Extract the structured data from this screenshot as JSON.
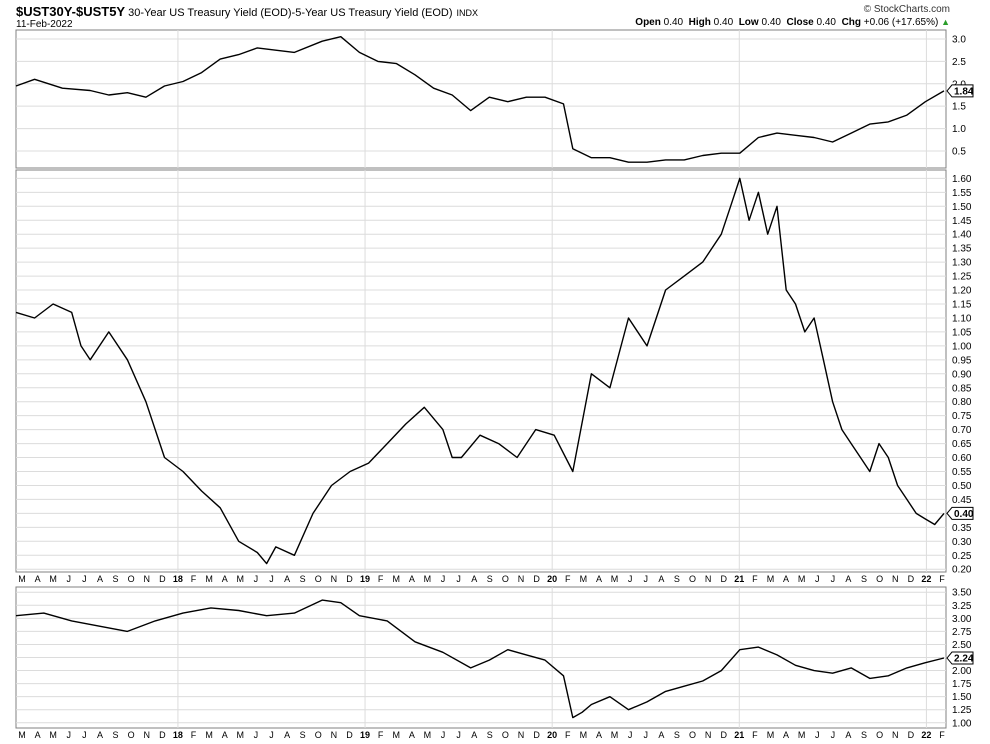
{
  "header": {
    "symbol": "$UST30Y-$UST5Y",
    "description": "30-Year US Treasury Yield (EOD)-5-Year US Treasury Yield (EOD)",
    "exchange": "INDX",
    "date": "11-Feb-2022",
    "brand": "© StockCharts.com",
    "open_label": "Open",
    "open": "0.40",
    "high_label": "High",
    "high": "0.40",
    "low_label": "Low",
    "low": "0.40",
    "close_label": "Close",
    "close": "0.40",
    "chg_label": "Chg",
    "chg": "+0.06 (+17.65%)",
    "chg_arrow": "▲"
  },
  "colors": {
    "line": "#000000",
    "grid": "#dcdcdc",
    "frame": "#808080",
    "up": "#2a9d2a"
  },
  "chart_data": [
    {
      "id": "upper",
      "type": "line",
      "title": "",
      "y_ticks": [
        "0.5",
        "1.0",
        "1.5",
        "2.0",
        "2.5",
        "3.0"
      ],
      "ylim": [
        0.12,
        3.2
      ],
      "last_label": "1.84",
      "series": [
        {
          "x": [
            0,
            0.02,
            0.05,
            0.08,
            0.1,
            0.12,
            0.14,
            0.16,
            0.18,
            0.2,
            0.22,
            0.24,
            0.26,
            0.28,
            0.3,
            0.33,
            0.35,
            0.37,
            0.39,
            0.41,
            0.43,
            0.45,
            0.47,
            0.49,
            0.51,
            0.53,
            0.55,
            0.57,
            0.59,
            0.6,
            0.62,
            0.64,
            0.66,
            0.68,
            0.7,
            0.72,
            0.74,
            0.76,
            0.78,
            0.8,
            0.82,
            0.84,
            0.86,
            0.88,
            0.9,
            0.92,
            0.94,
            0.96,
            0.98,
            1.0
          ],
          "y": [
            1.95,
            2.1,
            1.9,
            1.85,
            1.75,
            1.8,
            1.7,
            1.95,
            2.05,
            2.25,
            2.55,
            2.65,
            2.8,
            2.75,
            2.7,
            2.95,
            3.05,
            2.7,
            2.5,
            2.45,
            2.2,
            1.9,
            1.75,
            1.4,
            1.7,
            1.6,
            1.7,
            1.7,
            1.55,
            0.55,
            0.35,
            0.35,
            0.25,
            0.25,
            0.3,
            0.3,
            0.4,
            0.45,
            0.45,
            0.8,
            0.9,
            0.85,
            0.8,
            0.7,
            0.9,
            1.1,
            1.15,
            1.3,
            1.6,
            1.84
          ]
        }
      ]
    },
    {
      "id": "main",
      "type": "line",
      "title": "",
      "y_ticks": [
        "0.20",
        "0.25",
        "0.30",
        "0.35",
        "0.40",
        "0.45",
        "0.50",
        "0.55",
        "0.60",
        "0.65",
        "0.70",
        "0.75",
        "0.80",
        "0.85",
        "0.90",
        "0.95",
        "1.00",
        "1.05",
        "1.10",
        "1.15",
        "1.20",
        "1.25",
        "1.30",
        "1.35",
        "1.40",
        "1.45",
        "1.50",
        "1.55",
        "1.60"
      ],
      "ylim": [
        0.19,
        1.63
      ],
      "last_label": "0.40",
      "series": [
        {
          "x": [
            0,
            0.02,
            0.04,
            0.06,
            0.07,
            0.08,
            0.1,
            0.12,
            0.14,
            0.16,
            0.18,
            0.2,
            0.22,
            0.24,
            0.26,
            0.27,
            0.28,
            0.3,
            0.32,
            0.34,
            0.36,
            0.38,
            0.4,
            0.42,
            0.44,
            0.46,
            0.47,
            0.48,
            0.5,
            0.52,
            0.54,
            0.56,
            0.58,
            0.6,
            0.62,
            0.64,
            0.66,
            0.68,
            0.7,
            0.72,
            0.74,
            0.76,
            0.77,
            0.78,
            0.79,
            0.8,
            0.81,
            0.82,
            0.83,
            0.84,
            0.85,
            0.86,
            0.87,
            0.88,
            0.89,
            0.9,
            0.91,
            0.92,
            0.93,
            0.94,
            0.95,
            0.96,
            0.97,
            0.98,
            0.99,
            1.0
          ],
          "y": [
            1.12,
            1.1,
            1.15,
            1.12,
            1.0,
            0.95,
            1.05,
            0.95,
            0.8,
            0.6,
            0.55,
            0.48,
            0.42,
            0.3,
            0.26,
            0.22,
            0.28,
            0.25,
            0.4,
            0.5,
            0.55,
            0.58,
            0.65,
            0.72,
            0.78,
            0.7,
            0.6,
            0.6,
            0.68,
            0.65,
            0.6,
            0.7,
            0.68,
            0.55,
            0.9,
            0.85,
            1.1,
            1.0,
            1.2,
            1.25,
            1.3,
            1.4,
            1.5,
            1.6,
            1.45,
            1.55,
            1.4,
            1.5,
            1.2,
            1.15,
            1.05,
            1.1,
            0.95,
            0.8,
            0.7,
            0.65,
            0.6,
            0.55,
            0.65,
            0.6,
            0.5,
            0.45,
            0.4,
            0.38,
            0.36,
            0.4
          ]
        }
      ]
    },
    {
      "id": "lower",
      "type": "line",
      "title": "",
      "y_ticks": [
        "1.00",
        "1.25",
        "1.50",
        "1.75",
        "2.00",
        "2.25",
        "2.50",
        "2.75",
        "3.00",
        "3.25",
        "3.50"
      ],
      "ylim": [
        0.9,
        3.6
      ],
      "last_label": "2.24",
      "series": [
        {
          "x": [
            0,
            0.03,
            0.06,
            0.09,
            0.12,
            0.15,
            0.18,
            0.21,
            0.24,
            0.27,
            0.3,
            0.33,
            0.35,
            0.37,
            0.4,
            0.43,
            0.46,
            0.49,
            0.51,
            0.53,
            0.55,
            0.57,
            0.59,
            0.6,
            0.61,
            0.62,
            0.64,
            0.66,
            0.68,
            0.7,
            0.72,
            0.74,
            0.76,
            0.78,
            0.8,
            0.82,
            0.84,
            0.86,
            0.88,
            0.9,
            0.92,
            0.94,
            0.96,
            0.98,
            1.0
          ],
          "y": [
            3.05,
            3.1,
            2.95,
            2.85,
            2.75,
            2.95,
            3.1,
            3.2,
            3.15,
            3.05,
            3.1,
            3.35,
            3.3,
            3.05,
            2.95,
            2.55,
            2.35,
            2.05,
            2.2,
            2.4,
            2.3,
            2.2,
            1.9,
            1.1,
            1.2,
            1.35,
            1.5,
            1.25,
            1.4,
            1.6,
            1.7,
            1.8,
            2.0,
            2.4,
            2.45,
            2.3,
            2.1,
            2.0,
            1.95,
            2.05,
            1.85,
            1.9,
            2.05,
            2.15,
            2.24
          ]
        }
      ]
    }
  ],
  "x_axis": {
    "labels": [
      "M",
      "A",
      "M",
      "J",
      "J",
      "A",
      "S",
      "O",
      "N",
      "D",
      "18",
      "F",
      "M",
      "A",
      "M",
      "J",
      "J",
      "A",
      "S",
      "O",
      "N",
      "D",
      "19",
      "F",
      "M",
      "A",
      "M",
      "J",
      "J",
      "A",
      "S",
      "O",
      "N",
      "D",
      "20",
      "F",
      "M",
      "A",
      "M",
      "J",
      "J",
      "A",
      "S",
      "O",
      "N",
      "D",
      "21",
      "F",
      "M",
      "A",
      "M",
      "J",
      "J",
      "A",
      "S",
      "O",
      "N",
      "D",
      "22",
      "F"
    ],
    "bold": [
      "18",
      "19",
      "20",
      "21",
      "22"
    ]
  }
}
